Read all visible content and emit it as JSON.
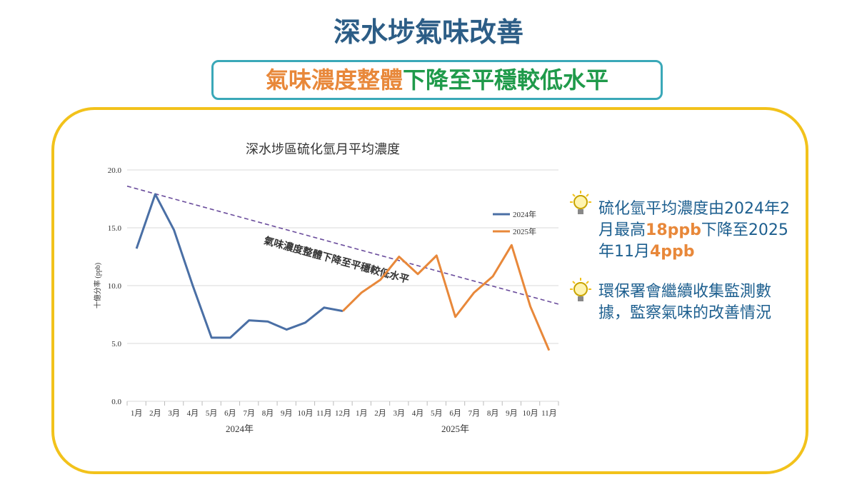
{
  "title": "深水埗氣味改善",
  "subtitle": {
    "part1": "氣味濃度整體",
    "part2": "下降至平穩較低水平"
  },
  "chart_data": {
    "type": "line",
    "title": "深水埗區硫化氫月平均濃度",
    "ylabel": "十億分率 (ppb)",
    "categories": [
      "1月",
      "2月",
      "3月",
      "4月",
      "5月",
      "6月",
      "7月",
      "8月",
      "9月",
      "10月",
      "11月",
      "12月",
      "1月",
      "2月",
      "3月",
      "4月",
      "5月",
      "6月",
      "7月",
      "8月",
      "9月",
      "10月",
      "11月"
    ],
    "groups": [
      {
        "label": "2024年",
        "start": 0,
        "end": 11
      },
      {
        "label": "2025年",
        "start": 12,
        "end": 22
      }
    ],
    "series": [
      {
        "name": "2024年",
        "color": "#4a6fa5",
        "values": [
          13.2,
          17.9,
          14.8,
          10.0,
          5.5,
          5.5,
          7.0,
          6.9,
          6.2,
          6.8,
          8.1,
          7.8,
          null,
          null,
          null,
          null,
          null,
          null,
          null,
          null,
          null,
          null,
          null
        ]
      },
      {
        "name": "2025年",
        "color": "#e8883a",
        "values": [
          null,
          null,
          null,
          null,
          null,
          null,
          null,
          null,
          null,
          null,
          null,
          7.8,
          9.4,
          10.5,
          12.5,
          11.0,
          12.6,
          7.3,
          9.4,
          10.8,
          13.5,
          8.2,
          4.4
        ]
      }
    ],
    "ylim": [
      0,
      20
    ],
    "yticks": [
      {
        "value": 0,
        "label": "0.0"
      },
      {
        "value": 5,
        "label": "5.0"
      },
      {
        "value": 10,
        "label": "10.0"
      },
      {
        "value": 15,
        "label": "15.0"
      },
      {
        "value": 20,
        "label": "20.0"
      }
    ],
    "grid": true,
    "trendline": {
      "start": 18.6,
      "end": 8.4,
      "color": "#6a4c9c",
      "label": "氣味濃度整體下降至平穩較低水平"
    }
  },
  "bullets": [
    [
      {
        "text": "硫化氫平均濃度由2024年2月最高"
      },
      {
        "text": "18ppb",
        "highlight": true
      },
      {
        "text": "下降至2025年11月"
      },
      {
        "text": "4ppb",
        "highlight": true
      }
    ],
    [
      {
        "text": "環保署會繼續收集監測數據，監察氣味的改善情況"
      }
    ]
  ]
}
